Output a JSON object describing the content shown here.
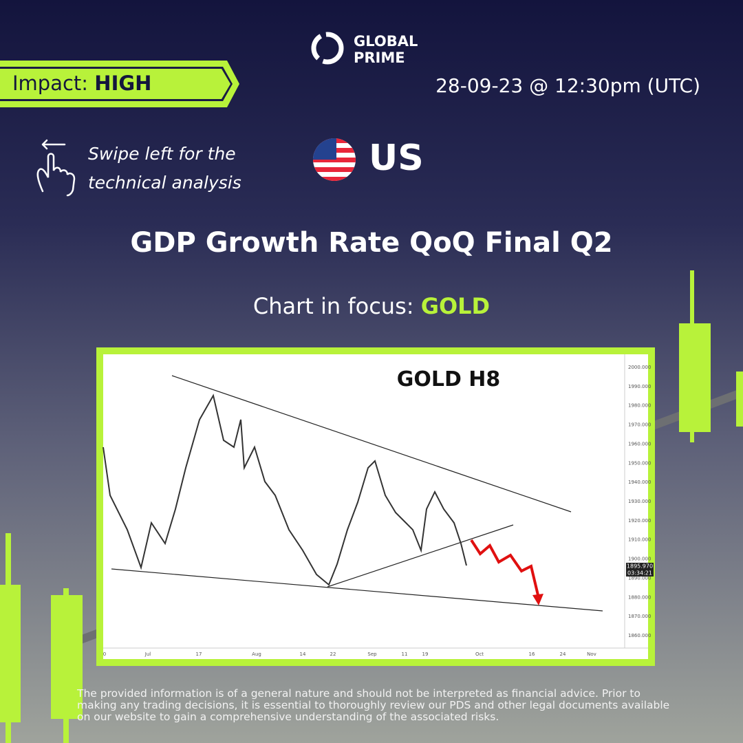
{
  "logo": {
    "line1": "GLOBAL",
    "line2": "PRIME"
  },
  "impact": {
    "label": "Impact:",
    "level": "HIGH"
  },
  "datetime": "28-09-23 @ 12:30pm (UTC)",
  "swipe": {
    "line1": "Swipe left for the",
    "line2": "technical analysis"
  },
  "country": "US",
  "title": "GDP Growth Rate QoQ Final Q2",
  "focus": {
    "label": "Chart in focus:",
    "asset": "GOLD"
  },
  "chart": {
    "title": "GOLD H8",
    "y_labels": [
      "2000.000",
      "1990.000",
      "1980.000",
      "1970.000",
      "1960.000",
      "1950.000",
      "1940.000",
      "1930.000",
      "1920.000",
      "1910.000",
      "1900.000",
      "1890.000",
      "1880.000",
      "1870.000",
      "1860.000"
    ],
    "x_labels": [
      "0",
      "Jul",
      "17",
      "Aug",
      "14",
      "22",
      "Sep",
      "11",
      "19",
      "Oct",
      "16",
      "24",
      "Nov"
    ],
    "price_label": "1895.970",
    "timer_label": "03:34:21"
  },
  "disclaimer": "The provided information is of a general nature and should not be interpreted as financial advice. Prior to making any trading decisions, it is essential to thoroughly review our PDS and other legal documents available on our website to gain a comprehensive understanding of the associated risks."
}
